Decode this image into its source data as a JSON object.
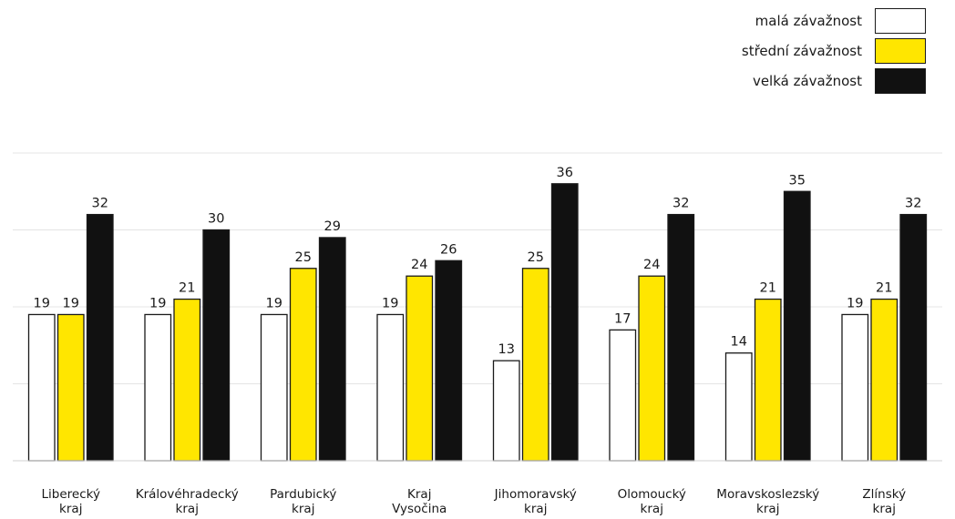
{
  "chart_data": {
    "type": "bar",
    "categories": [
      [
        "Liberecký",
        "kraj"
      ],
      [
        "Královéhradecký",
        "kraj"
      ],
      [
        "Pardubický",
        "kraj"
      ],
      [
        "Kraj",
        "Vysočina"
      ],
      [
        "Jihomoravský",
        "kraj"
      ],
      [
        "Olomoucký",
        "kraj"
      ],
      [
        "Moravskoslezský",
        "kraj"
      ],
      [
        "Zlínský",
        "kraj"
      ]
    ],
    "series": [
      {
        "name": "malá závažnost",
        "color": "#ffffff",
        "values": [
          19,
          19,
          19,
          19,
          13,
          17,
          14,
          19
        ]
      },
      {
        "name": "střední závažnost",
        "color": "#ffe600",
        "values": [
          19,
          21,
          25,
          24,
          25,
          24,
          21,
          21
        ]
      },
      {
        "name": "velká závažnost",
        "color": "#111111",
        "values": [
          32,
          30,
          29,
          26,
          36,
          32,
          35,
          32
        ]
      }
    ],
    "ylim": [
      0,
      40
    ],
    "grid": true,
    "legend_position": "top-right",
    "xlabel": "",
    "ylabel": "",
    "title": ""
  }
}
